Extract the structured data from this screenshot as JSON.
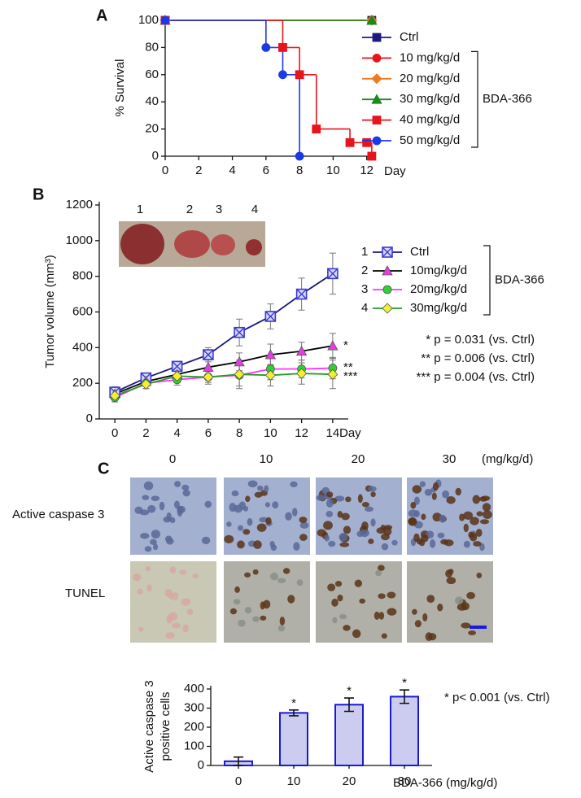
{
  "panels": [
    "A",
    "B",
    "C"
  ],
  "chart_data": [
    {
      "type": "line",
      "step": true,
      "ylabel": "% Survival",
      "xlabel": "Day",
      "xlim": [
        0,
        12.5
      ],
      "ylim": [
        0,
        100
      ],
      "xticks": [
        0,
        2,
        4,
        6,
        8,
        10,
        12
      ],
      "yticks": [
        0,
        20,
        40,
        60,
        80,
        100
      ],
      "legend_group": "BDA-366",
      "series": [
        {
          "name": "Ctrl",
          "color": "#1a1a80",
          "marker": "square",
          "x": [
            0,
            12.3
          ],
          "values": [
            100,
            100
          ]
        },
        {
          "name": "10 mg/kg/d",
          "color": "#e8141c",
          "marker": "circle",
          "x": [
            0,
            12.3
          ],
          "values": [
            100,
            100
          ]
        },
        {
          "name": "20 mg/kg/d",
          "color": "#f07a20",
          "marker": "diamond",
          "x": [
            0,
            12.3
          ],
          "values": [
            100,
            100
          ]
        },
        {
          "name": "30 mg/kg/d",
          "color": "#1a8a1a",
          "marker": "triangle",
          "x": [
            0,
            12.3
          ],
          "values": [
            100,
            100
          ]
        },
        {
          "name": "40 mg/kg/d",
          "color": "#e8141c",
          "marker": "square",
          "x": [
            0,
            7,
            8,
            9,
            11,
            12,
            12.3
          ],
          "values": [
            100,
            80,
            60,
            20,
            10,
            10,
            0
          ]
        },
        {
          "name": "50 mg/kg/d",
          "color": "#1a3ae8",
          "marker": "circle",
          "x": [
            0,
            6,
            7,
            8
          ],
          "values": [
            100,
            80,
            60,
            0
          ]
        }
      ]
    },
    {
      "type": "line",
      "ylabel": "Tumor volume (mm³)",
      "xlabel": "Day",
      "xlim": [
        -1,
        15
      ],
      "ylim": [
        0,
        1200
      ],
      "xticks": [
        0,
        2,
        4,
        6,
        8,
        10,
        12,
        14
      ],
      "yticks": [
        0,
        200,
        400,
        600,
        800,
        1000,
        1200
      ],
      "legend_group": "BDA-366",
      "legend_numbers": [
        "1",
        "2",
        "3",
        "4"
      ],
      "photo_labels": [
        "1",
        "2",
        "3",
        "4"
      ],
      "significance": [
        "*",
        "**",
        "***"
      ],
      "notes": [
        "* p = 0.031 (vs. Ctrl)",
        "** p = 0.006 (vs. Ctrl)",
        "*** p = 0.004 (vs. Ctrl)"
      ],
      "series": [
        {
          "name": "Ctrl",
          "color": "#1a1a80",
          "marker_color": "#3a3ad0",
          "marker": "square-x",
          "x": [
            0,
            2,
            4,
            6,
            8,
            10,
            12,
            14
          ],
          "values": [
            150,
            230,
            295,
            360,
            485,
            575,
            700,
            815
          ],
          "errors": [
            30,
            20,
            25,
            40,
            75,
            70,
            90,
            115
          ]
        },
        {
          "name": "10mg/kg/d",
          "color": "#000000",
          "marker_color": "#e040e0",
          "marker": "triangle",
          "x": [
            0,
            2,
            4,
            6,
            8,
            10,
            12,
            14
          ],
          "values": [
            140,
            210,
            250,
            290,
            320,
            360,
            380,
            410
          ],
          "errors": [
            30,
            25,
            25,
            40,
            50,
            60,
            50,
            70
          ]
        },
        {
          "name": "20mg/kg/d",
          "color": "#ff30ff",
          "marker_color": "#30d030",
          "marker": "circle",
          "x": [
            0,
            2,
            4,
            6,
            8,
            10,
            12,
            14
          ],
          "values": [
            120,
            200,
            220,
            235,
            245,
            280,
            280,
            285
          ],
          "errors": [
            25,
            30,
            30,
            30,
            60,
            60,
            50,
            60
          ]
        },
        {
          "name": "30mg/kg/d",
          "color": "#20a020",
          "marker_color": "#f0f030",
          "marker": "diamond",
          "x": [
            0,
            2,
            4,
            6,
            8,
            10,
            12,
            14
          ],
          "values": [
            130,
            195,
            240,
            235,
            250,
            245,
            255,
            250
          ],
          "errors": [
            20,
            25,
            30,
            40,
            80,
            60,
            60,
            80
          ]
        }
      ]
    },
    {
      "type": "bar",
      "ylabel": [
        "Active caspase 3",
        "positive cells"
      ],
      "xlabel": "BDA-366 (mg/kg/d)",
      "categories": [
        "0",
        "10",
        "20",
        "30"
      ],
      "values": [
        22,
        275,
        318,
        360
      ],
      "errors": [
        22,
        15,
        35,
        35
      ],
      "bar_annotations": [
        null,
        "*",
        "*",
        "*"
      ],
      "note": "* p< 0.001 (vs. Ctrl)",
      "color": "#ccccf0",
      "edge_color": "#1a1ad0",
      "ylim": [
        0,
        400
      ],
      "yticks": [
        0,
        100,
        200,
        300,
        400
      ]
    }
  ],
  "micrographs": {
    "doses": [
      "0",
      "10",
      "20",
      "30"
    ],
    "unit": "(mg/kg/d)",
    "rows": [
      "Active caspase 3",
      "TUNEL"
    ]
  }
}
